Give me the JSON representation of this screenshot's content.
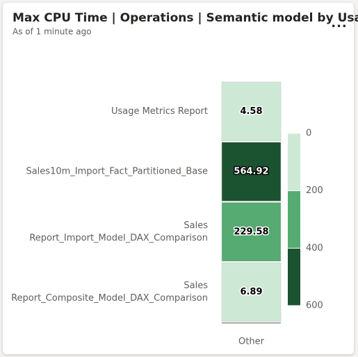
{
  "header": {
    "title": "Max CPU Time | Operations | Semantic model by Usage",
    "subtitle": "As of 1 minute ago",
    "menu": "..."
  },
  "chart_data": {
    "type": "heatmap",
    "categories": [
      [
        "Usage Metrics Report"
      ],
      [
        "Sales10m_Import_Fact_Partitioned_Base"
      ],
      [
        "Sales",
        "Report_Import_Model_DAX_Comparison"
      ],
      [
        "Sales",
        "Report_Composite_Model_DAX_Comparison"
      ]
    ],
    "x": [
      "Other"
    ],
    "values": [
      4.58,
      564.92,
      229.58,
      6.89
    ],
    "clim": [
      0,
      600
    ],
    "cticks": [
      0,
      200,
      400,
      600
    ],
    "colors": [
      "#cde9d6",
      "#55ab72",
      "#1b5330"
    ]
  }
}
